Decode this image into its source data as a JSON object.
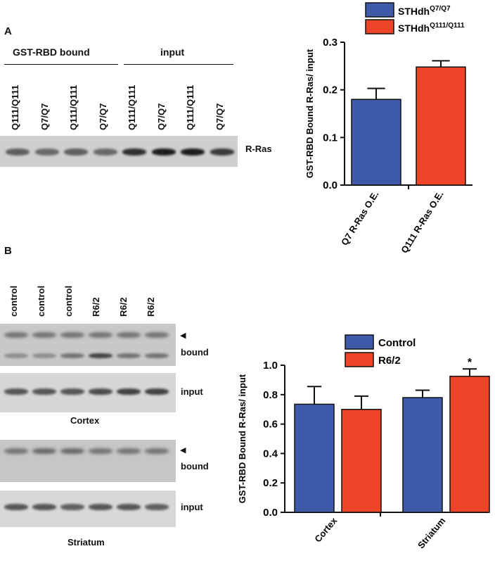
{
  "panel_a": {
    "label": "A",
    "blot": {
      "group_labels": [
        "GST-RBD bound",
        "input"
      ],
      "lanes": [
        "Q111/Q111",
        "Q7/Q7",
        "Q111/Q111",
        "Q7/Q7",
        "Q111/Q111",
        "Q7/Q7",
        "Q111/Q111",
        "Q7/Q7"
      ],
      "band_label": "R-Ras",
      "band_intensity": [
        0.55,
        0.5,
        0.55,
        0.5,
        0.8,
        0.9,
        0.9,
        0.75
      ]
    }
  },
  "panel_b": {
    "label": "B",
    "lanes": [
      "control",
      "control",
      "control",
      "R6/2",
      "R6/2",
      "R6/2"
    ],
    "blot_labels": {
      "bound": "bound",
      "input": "input",
      "arrow": "◀",
      "cortex": "Cortex",
      "striatum": "Striatum"
    }
  },
  "chart_data": [
    {
      "type": "bar",
      "categories": [
        "Q7 R-Ras O.E.",
        "Q111 R-Ras O.E."
      ],
      "legend": [
        {
          "name": "STHdh",
          "sup": "Q7/Q7",
          "color": "#3F5AA8"
        },
        {
          "name": "STHdh",
          "sup": "Q111/Q111",
          "color": "#EE4427"
        }
      ],
      "values": [
        0.18,
        0.248
      ],
      "errors": [
        0.023,
        0.013
      ],
      "colors": [
        "#3F5AA8",
        "#EE4427"
      ],
      "ylabel": "GST-RBD Bound R-Ras/ input",
      "ylim": [
        0,
        0.3
      ],
      "yticks": [
        "0.0",
        "0.1",
        "0.2",
        "0.3"
      ],
      "legend_position": "top"
    },
    {
      "type": "bar",
      "categories": [
        "Cortex",
        "Striatum"
      ],
      "series": [
        {
          "name": "Control",
          "values": [
            0.735,
            0.78
          ],
          "errors": [
            0.12,
            0.05
          ],
          "color": "#3F5AA8"
        },
        {
          "name": "R6/2",
          "values": [
            0.7,
            0.925
          ],
          "errors": [
            0.09,
            0.05
          ],
          "color": "#EE4427"
        }
      ],
      "annotations": [
        {
          "series": "R6/2",
          "category": "Striatum",
          "text": "*"
        }
      ],
      "ylabel": "GST-RBD Bound R-Ras/ input",
      "ylim": [
        0,
        1.0
      ],
      "yticks": [
        "0.0",
        "0.2",
        "0.4",
        "0.6",
        "0.8",
        "1.0"
      ],
      "legend_position": "top"
    }
  ]
}
